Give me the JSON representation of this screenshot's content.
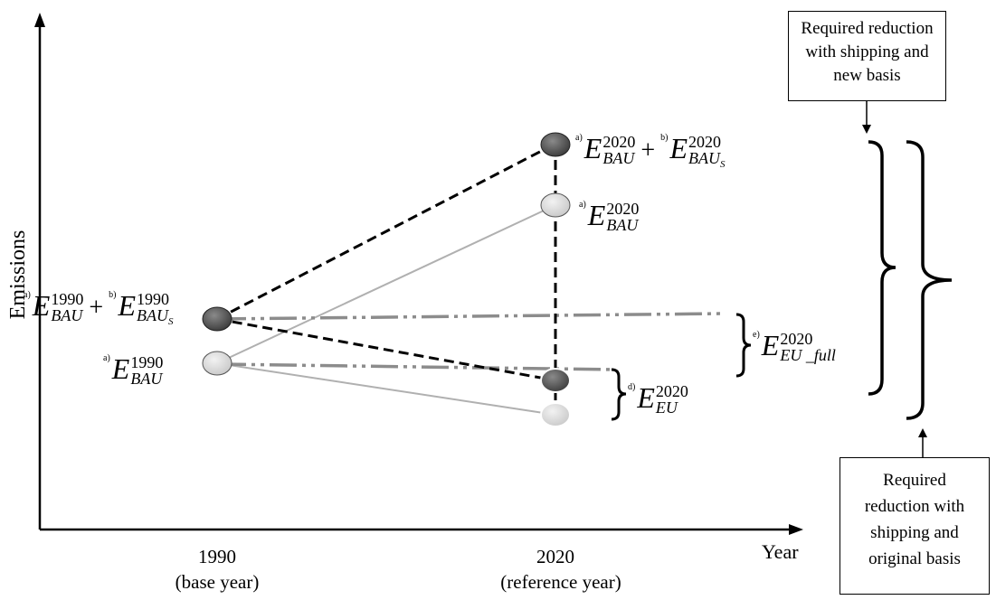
{
  "axes": {
    "y_label": "Emissions",
    "x_label": "Year"
  },
  "ticks": [
    {
      "year": "1990",
      "note": "(base year)"
    },
    {
      "year": "2020",
      "note": "(reference year)"
    }
  ],
  "labels": {
    "bau2020_total": {
      "fn1": "a)",
      "sym1": "E",
      "sup1": "2020",
      "sub1": "BAU",
      "plus": "+",
      "fn2": "b)",
      "sym2": "E",
      "sup2": "2020",
      "sub2": "BAU",
      "subsub2": "S"
    },
    "bau2020": {
      "fn": "a)",
      "sym": "E",
      "sup": "2020",
      "sub": "BAU"
    },
    "bau1990_total": {
      "fn1": "a)",
      "sym1": "E",
      "sup1": "1990",
      "sub1": "BAU",
      "plus": "+",
      "fn2": "b)",
      "sym2": "E",
      "sup2": "1990",
      "sub2": "BAU",
      "subsub2": "S"
    },
    "bau1990": {
      "fn": "a)",
      "sym": "E",
      "sup": "1990",
      "sub": "BAU"
    },
    "eu_full": {
      "fn": "e)",
      "sym": "E",
      "sup": "2020",
      "sub": "EU _full"
    },
    "eu": {
      "fn": "d)",
      "sym": "E",
      "sup": "2020",
      "sub": "EU"
    }
  },
  "boxes": {
    "top_lines": [
      "Required reduction",
      "with shipping and",
      "new basis"
    ],
    "bottom_lines": [
      "Required",
      "reduction with",
      "shipping and",
      "original basis"
    ]
  },
  "colors": {
    "dark_node": "#4a4a4a",
    "light_node": "#d9d9d9",
    "lighter_node": "#e2e2e2",
    "gray_line": "#b0b0b0",
    "dashdot_line": "#8c8c8c"
  }
}
